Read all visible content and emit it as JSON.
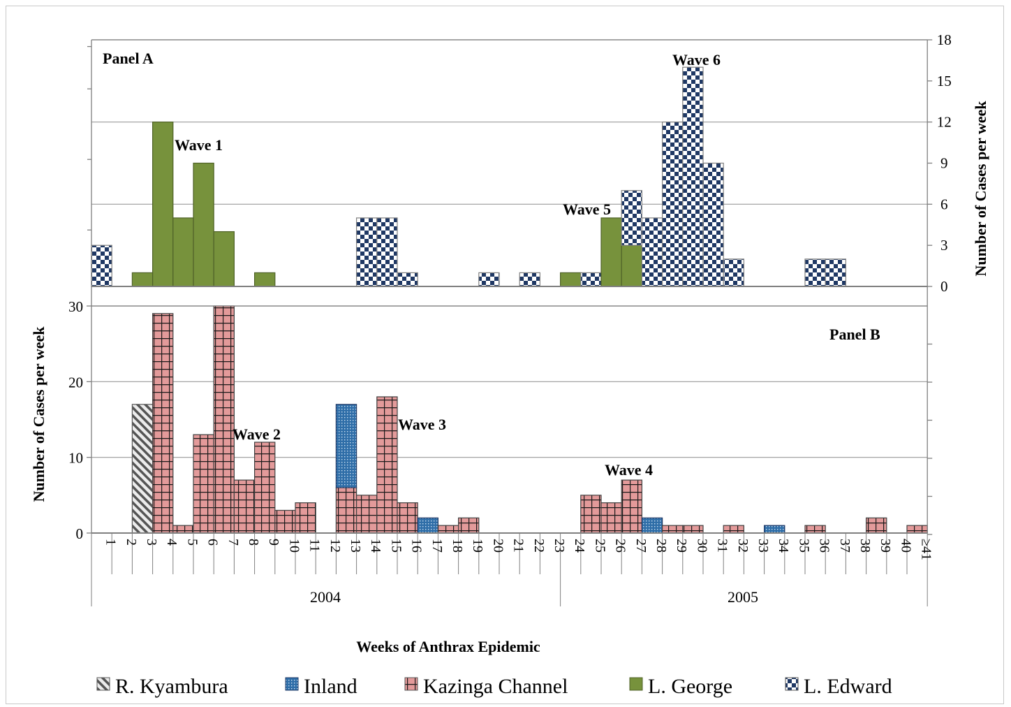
{
  "colors": {
    "kyambura": "#d9d9d9",
    "inland": "#2f6ea8",
    "kazinga": "#e39a9a",
    "george": "#77923c",
    "edward": "#1f3864",
    "grid": "#9a9a9a",
    "axis": "#7f7f7f"
  },
  "legend": {
    "items": [
      {
        "label": "R. Kyambura",
        "pattern": "kyambura"
      },
      {
        "label": "Inland",
        "pattern": "inland"
      },
      {
        "label": "Kazinga Channel",
        "pattern": "kazinga"
      },
      {
        "label": "L. George",
        "pattern": "george"
      },
      {
        "label": "L. Edward",
        "pattern": "edward"
      }
    ]
  },
  "chart_data": [
    {
      "type": "bar",
      "stacked": true,
      "title": "Panel A",
      "ylabel": "Number of Cases per week",
      "y_axis_side": "right",
      "ylim": [
        0,
        18
      ],
      "yticks": [
        0,
        3,
        6,
        9,
        12,
        15,
        18
      ],
      "categories": [
        "1",
        "2",
        "3",
        "4",
        "5",
        "6",
        "7",
        "8",
        "9",
        "10",
        "11",
        "12",
        "13",
        "14",
        "15",
        "16",
        "17",
        "18",
        "19",
        "20",
        "21",
        "22",
        "23",
        "24",
        "25",
        "26",
        "27",
        "28",
        "29",
        "30",
        "31",
        "32",
        "33",
        "34",
        "35",
        "36",
        "37",
        "38",
        "39",
        "40",
        "≥41"
      ],
      "series": [
        {
          "name": "L. George",
          "pattern": "george",
          "values": [
            0,
            0,
            1,
            12,
            5,
            9,
            4,
            0,
            1,
            0,
            0,
            0,
            0,
            0,
            0,
            0,
            0,
            0,
            0,
            0,
            0,
            0,
            0,
            1,
            0,
            5,
            3,
            0,
            0,
            0,
            0,
            0,
            0,
            0,
            0,
            0,
            0,
            0,
            0,
            0,
            0
          ]
        },
        {
          "name": "L. Edward",
          "pattern": "edward",
          "values": [
            3,
            0,
            0,
            0,
            0,
            0,
            0,
            0,
            0,
            0,
            0,
            0,
            0,
            5,
            5,
            1,
            0,
            0,
            0,
            1,
            0,
            1,
            0,
            0,
            1,
            0,
            4,
            5,
            12,
            16,
            9,
            2,
            0,
            0,
            0,
            2,
            2,
            0,
            0,
            0,
            0
          ]
        }
      ],
      "annotations": [
        {
          "text": "Wave 1",
          "category": "5",
          "y": 10.5
        },
        {
          "text": "Wave 5",
          "category": "25",
          "y": 5.8
        },
        {
          "text": "Wave 6",
          "category": "30",
          "y": 16.5
        }
      ]
    },
    {
      "type": "bar",
      "stacked": true,
      "title": "Panel B",
      "ylabel": "Number of Cases per week",
      "xlabel": "Weeks of Anthrax Epidemic",
      "y_axis_side": "left",
      "ylim": [
        0,
        30
      ],
      "yticks": [
        0,
        10,
        20,
        30
      ],
      "categories": [
        "1",
        "2",
        "3",
        "4",
        "5",
        "6",
        "7",
        "8",
        "9",
        "10",
        "11",
        "12",
        "13",
        "14",
        "15",
        "16",
        "17",
        "18",
        "19",
        "20",
        "21",
        "22",
        "23",
        "24",
        "25",
        "26",
        "27",
        "28",
        "29",
        "30",
        "31",
        "32",
        "33",
        "34",
        "35",
        "36",
        "37",
        "38",
        "39",
        "40",
        "≥41"
      ],
      "year_groups": [
        {
          "label": "2004",
          "from": 1,
          "to": 23
        },
        {
          "label": "2005",
          "from": 24,
          "to": 41
        }
      ],
      "series": [
        {
          "name": "R. Kyambura",
          "pattern": "kyambura",
          "values": [
            0,
            0,
            17,
            0,
            0,
            0,
            0,
            0,
            0,
            0,
            0,
            0,
            0,
            0,
            0,
            0,
            0,
            0,
            0,
            0,
            0,
            0,
            0,
            0,
            0,
            0,
            0,
            0,
            0,
            0,
            0,
            0,
            0,
            0,
            0,
            0,
            0,
            0,
            0,
            0,
            0
          ]
        },
        {
          "name": "Kazinga Channel",
          "pattern": "kazinga",
          "values": [
            0,
            0,
            0,
            29,
            1,
            13,
            30,
            7,
            12,
            3,
            4,
            0,
            6,
            5,
            18,
            4,
            0,
            1,
            2,
            0,
            0,
            0,
            0,
            0,
            5,
            4,
            7,
            0,
            1,
            1,
            0,
            1,
            0,
            0,
            0,
            1,
            0,
            0,
            2,
            0,
            1
          ]
        },
        {
          "name": "Inland",
          "pattern": "inland",
          "values": [
            0,
            0,
            0,
            0,
            0,
            0,
            0,
            0,
            0,
            0,
            0,
            0,
            11,
            0,
            0,
            0,
            2,
            0,
            0,
            0,
            0,
            0,
            0,
            0,
            0,
            0,
            0,
            2,
            0,
            0,
            0,
            0,
            0,
            1,
            0,
            0,
            0,
            0,
            0,
            0,
            0
          ]
        }
      ],
      "annotations": [
        {
          "text": "Wave 2",
          "category": "9",
          "y": 13
        },
        {
          "text": "Wave 3",
          "category": "16",
          "y": 14.5
        },
        {
          "text": "Wave 4",
          "category": "27",
          "y": 8
        }
      ]
    }
  ]
}
